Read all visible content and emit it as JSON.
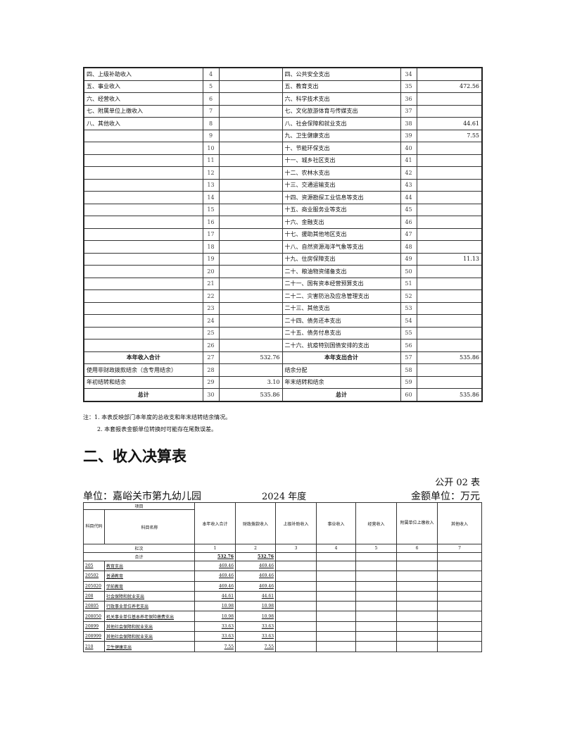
{
  "table1": {
    "rows": [
      [
        "四、上级补助收入",
        "4",
        "",
        "四、公共安全支出",
        "34",
        ""
      ],
      [
        "五、事业收入",
        "5",
        "",
        "五、教育支出",
        "35",
        "472.56"
      ],
      [
        "六、经营收入",
        "6",
        "",
        "六、科学技术支出",
        "36",
        ""
      ],
      [
        "七、附属单位上缴收入",
        "7",
        "",
        "七、文化旅游体育与传媒支出",
        "37",
        ""
      ],
      [
        "八、其他收入",
        "8",
        "",
        "八、社会保障和就业支出",
        "38",
        "44.61"
      ],
      [
        "",
        "9",
        "",
        "九、卫生健康支出",
        "39",
        "7.55"
      ],
      [
        "",
        "10",
        "",
        "十、节能环保支出",
        "40",
        ""
      ],
      [
        "",
        "11",
        "",
        "十一、城乡社区支出",
        "41",
        ""
      ],
      [
        "",
        "12",
        "",
        "十二、农林水支出",
        "42",
        ""
      ],
      [
        "",
        "13",
        "",
        "十三、交通运输支出",
        "43",
        ""
      ],
      [
        "",
        "14",
        "",
        "十四、资源勘探工业信息等支出",
        "44",
        ""
      ],
      [
        "",
        "15",
        "",
        "十五、商业服务业等支出",
        "45",
        ""
      ],
      [
        "",
        "16",
        "",
        "十六、金融支出",
        "46",
        ""
      ],
      [
        "",
        "17",
        "",
        "十七、援助其他地区支出",
        "47",
        ""
      ],
      [
        "",
        "18",
        "",
        "十八、自然资源海洋气象等支出",
        "48",
        ""
      ],
      [
        "",
        "19",
        "",
        "十九、住房保障支出",
        "49",
        "11.13"
      ],
      [
        "",
        "20",
        "",
        "二十、粮油物资储备支出",
        "50",
        ""
      ],
      [
        "",
        "21",
        "",
        "二十一、国有资本经营预算支出",
        "51",
        ""
      ],
      [
        "",
        "22",
        "",
        "二十二、灾害防治及应急管理支出",
        "52",
        ""
      ],
      [
        "",
        "23",
        "",
        "二十三、其他支出",
        "53",
        ""
      ],
      [
        "",
        "24",
        "",
        "二十四、债务还本支出",
        "54",
        ""
      ],
      [
        "",
        "25",
        "",
        "二十五、债务付息支出",
        "55",
        ""
      ],
      [
        "",
        "26",
        "",
        "二十六、抗疫特别国债安排的支出",
        "56",
        ""
      ],
      [
        "本年收入合计",
        "27",
        "532.76",
        "本年支出合计",
        "57",
        "535.86"
      ],
      [
        "使用非财政拨款结余（含专用结余）",
        "28",
        "",
        "结余分配",
        "58",
        ""
      ],
      [
        "年初结转和结余",
        "29",
        "3.10",
        "年末结转和结余",
        "59",
        ""
      ],
      [
        "总计",
        "30",
        "535.86",
        "总计",
        "60",
        "535.86"
      ]
    ],
    "bold_rows": [
      23,
      26
    ]
  },
  "notes": [
    "注：1. 本表反映部门本年度的总收支和年末结转结余情况。",
    "2. 本套报表金额单位转换时可能存在尾数误差。"
  ],
  "section_title": "二、收入决算表",
  "form_no": "公开 02 表",
  "unit": "单位：嘉峪关市第九幼儿园",
  "year": "2024 年度",
  "currency": "金额单位：万元",
  "table2": {
    "item": "项目",
    "code_header": "科目代码",
    "name_header": "科目名称",
    "columns": [
      "本年收入合计",
      "财政拨款收入",
      "上级补助收入",
      "事业收入",
      "经营收入",
      "附属单位上缴收入",
      "其他收入"
    ],
    "col_index_label": "栏次",
    "col_index": [
      "1",
      "2",
      "3",
      "4",
      "5",
      "6",
      "7"
    ],
    "total_label": "合计",
    "total": [
      "532.76",
      "532.76",
      "",
      "",
      "",
      "",
      ""
    ],
    "rows": [
      {
        "code": "205",
        "name": "教育支出",
        "v": [
          "469.46",
          "469.46",
          "",
          "",
          "",
          "",
          ""
        ]
      },
      {
        "code": "20502",
        "name": "普通教育",
        "v": [
          "469.46",
          "469.46",
          "",
          "",
          "",
          "",
          ""
        ]
      },
      {
        "code": "205020",
        "name": "学前教育",
        "v": [
          "469.46",
          "469.46",
          "",
          "",
          "",
          "",
          ""
        ]
      },
      {
        "code": "208",
        "name": "社会保障和就业支出",
        "v": [
          "44.61",
          "44.61",
          "",
          "",
          "",
          "",
          ""
        ]
      },
      {
        "code": "20805",
        "name": "行政事业单位养老支出",
        "v": [
          "10.98",
          "10.98",
          "",
          "",
          "",
          "",
          ""
        ]
      },
      {
        "code": "208050",
        "name": "机关事业单位基本养老保险缴费支出",
        "v": [
          "10.98",
          "10.98",
          "",
          "",
          "",
          "",
          ""
        ]
      },
      {
        "code": "20899",
        "name": "其他社会保障和就业支出",
        "v": [
          "33.63",
          "33.63",
          "",
          "",
          "",
          "",
          ""
        ]
      },
      {
        "code": "208999",
        "name": "其他社会保障和就业支出",
        "v": [
          "33.63",
          "33.63",
          "",
          "",
          "",
          "",
          ""
        ]
      },
      {
        "code": "210",
        "name": "卫生健康支出",
        "v": [
          "7.55",
          "7.55",
          "",
          "",
          "",
          "",
          ""
        ]
      }
    ]
  }
}
